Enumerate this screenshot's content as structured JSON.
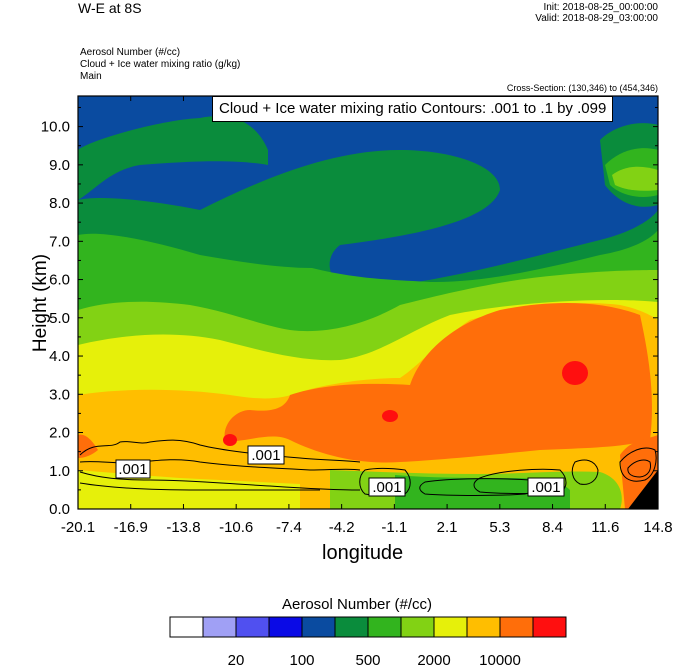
{
  "header": {
    "title": "W-E at 8S",
    "init": "Init: 2018-08-25_00:00:00",
    "valid": "Valid: 2018-08-29_03:00:00",
    "field1": "Aerosol Number   (#/cc)",
    "field2": "Cloud + Ice water mixing ratio   (g/kg)",
    "field3": "Main",
    "cross_section": "Cross-Section: (130,346) to (454,346)",
    "contour_info": "Cloud + Ice water mixing ratio Contours: .001 to .1 by .099"
  },
  "chart_data": {
    "type": "heatmap",
    "xlabel": "longitude",
    "ylabel": "Height (km)",
    "xlim": [
      -20.1,
      14.8
    ],
    "ylim": [
      0,
      10.8
    ],
    "x_ticks": [
      "-20.1",
      "-16.9",
      "-13.8",
      "-10.6",
      "-7.4",
      "-4.2",
      "-1.1",
      "2.1",
      "5.3",
      "8.4",
      "11.6",
      "14.8"
    ],
    "y_ticks": [
      "0.0",
      "1.0",
      "2.0",
      "3.0",
      "4.0",
      "5.0",
      "6.0",
      "7.0",
      "8.0",
      "9.0",
      "10.0"
    ],
    "contour_labels": [
      ".001",
      ".001",
      ".001",
      ".001"
    ],
    "colorbar": {
      "title": "Aerosol Number  (#/cc)",
      "colors": [
        "#ffffff",
        "#a0a0f5",
        "#5050f0",
        "#0a0ae6",
        "#0a4ba0",
        "#0a8c3c",
        "#32b41e",
        "#82d214",
        "#e6f00a",
        "#ffbe00",
        "#ff6e0a",
        "#ff0f0f"
      ],
      "labels": [
        "20",
        "100",
        "500",
        "2000",
        "10000"
      ]
    }
  }
}
